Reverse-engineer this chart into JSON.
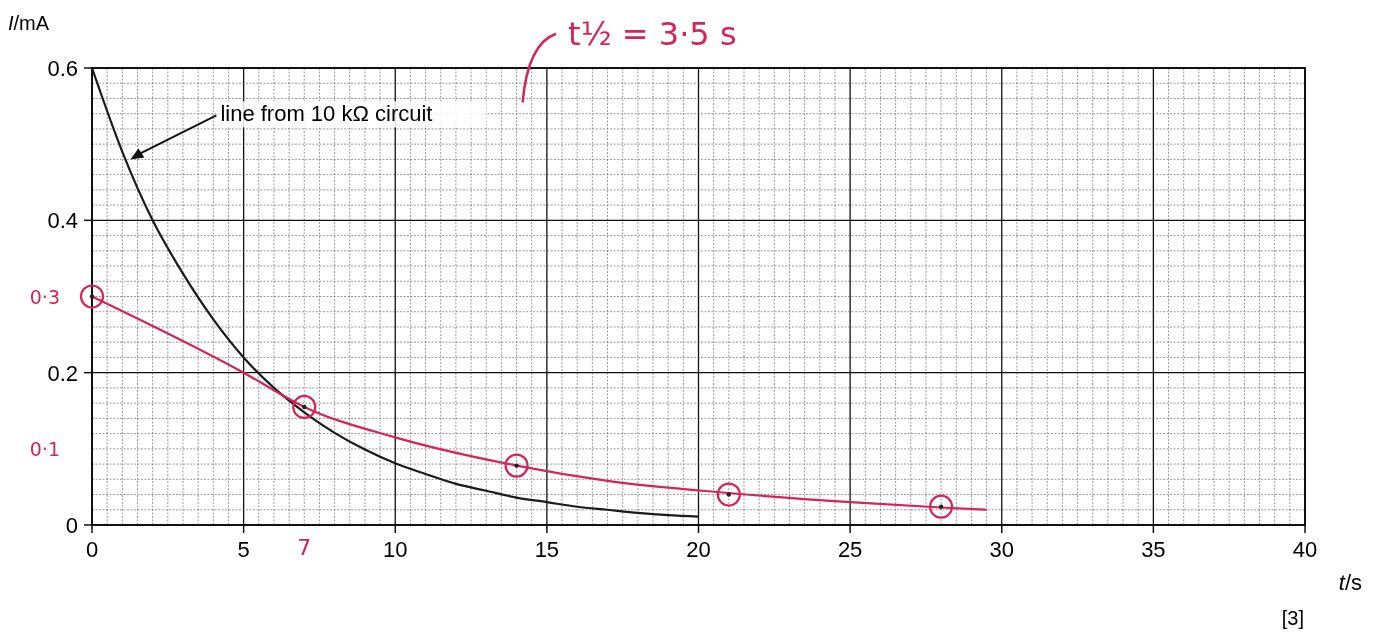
{
  "chart_data": {
    "type": "line",
    "xlabel": "t/s",
    "ylabel": "I/mA",
    "xlim": [
      0,
      40
    ],
    "ylim": [
      0,
      0.6
    ],
    "xticks": [
      0,
      5,
      10,
      15,
      20,
      25,
      30,
      35,
      40
    ],
    "yticks": [
      0,
      0.2,
      0.4,
      0.6
    ],
    "grid": true,
    "series": [
      {
        "color": "#1a1a1a",
        "line_style": "solid",
        "marker": "none",
        "x": [
          0,
          1,
          2,
          3,
          4,
          5,
          6,
          7,
          8,
          9,
          10,
          11,
          12,
          13,
          14,
          15,
          16,
          17,
          18,
          19,
          20
        ],
        "values": [
          0.6,
          0.49,
          0.4,
          0.33,
          0.27,
          0.22,
          0.18,
          0.148,
          0.121,
          0.099,
          0.081,
          0.067,
          0.054,
          0.045,
          0.036,
          0.03,
          0.024,
          0.02,
          0.016,
          0.013,
          0.011
        ]
      },
      {
        "color": "#d4245a",
        "line_style": "solid",
        "marker": "none",
        "x": [
          0,
          5,
          7,
          10,
          14,
          17,
          21,
          25,
          28,
          29.5
        ],
        "values": [
          0.3,
          0.2,
          0.155,
          0.115,
          0.078,
          0.058,
          0.042,
          0.03,
          0.023,
          0.02
        ]
      },
      {
        "type": "scatter",
        "color": "#d4245a",
        "marker": "circle",
        "x": [
          0,
          7,
          14,
          21,
          28
        ],
        "values": [
          0.3,
          0.155,
          0.078,
          0.04,
          0.024
        ]
      }
    ],
    "annotations": [
      {
        "text": "line from 10 kΩ circuit",
        "x": 1.2,
        "y": 0.48
      },
      "t½ = 3·5 s",
      {
        "text": "0·3",
        "x": 0,
        "y": 0.3
      },
      "0·1",
      "7",
      "[3]"
    ]
  }
}
